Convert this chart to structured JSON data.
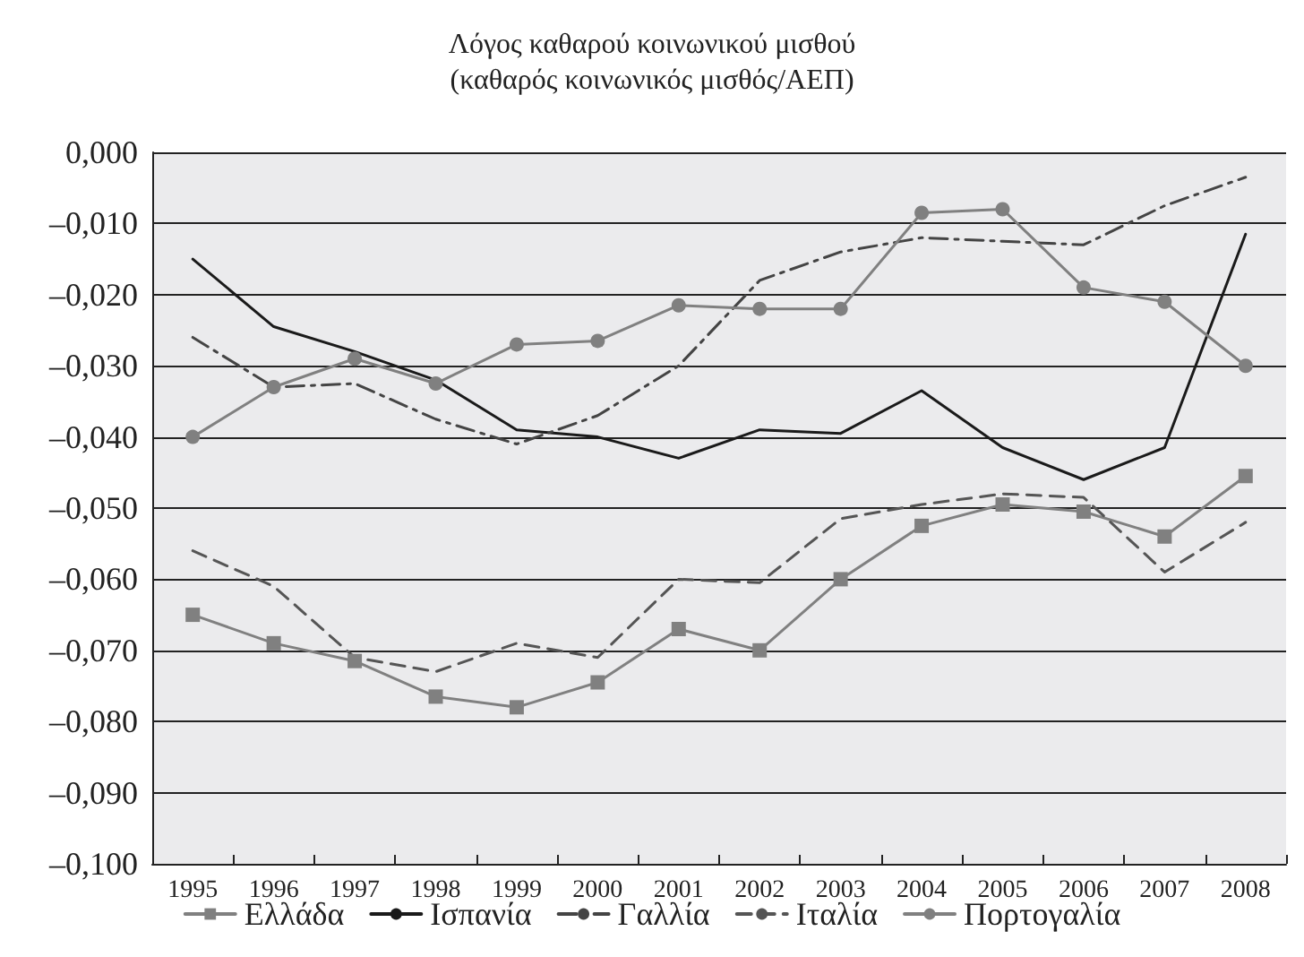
{
  "chart_data": {
    "type": "line",
    "title": "Λόγος καθαρού κοινωνικού μισθού",
    "subtitle": "(καθαρός κοινωνικός μισθός/ΑΕΠ)",
    "categories": [
      "1995",
      "1996",
      "1997",
      "1998",
      "1999",
      "2000",
      "2001",
      "2002",
      "2003",
      "2004",
      "2005",
      "2006",
      "2007",
      "2008"
    ],
    "series": [
      {
        "name": "Ελλάδα",
        "color": "#808080",
        "marker": "square",
        "line_style": "solid",
        "values": [
          -0.065,
          -0.069,
          -0.0715,
          -0.0765,
          -0.078,
          -0.0745,
          -0.067,
          -0.07,
          -0.06,
          -0.0525,
          -0.0495,
          -0.0505,
          -0.054,
          -0.0455
        ]
      },
      {
        "name": "Ισπανία",
        "color": "#1a1a1a",
        "marker": "none",
        "line_style": "solid",
        "values": [
          -0.015,
          -0.0245,
          -0.028,
          -0.032,
          -0.039,
          -0.04,
          -0.043,
          -0.039,
          -0.0395,
          -0.0335,
          -0.0415,
          -0.046,
          -0.0415,
          -0.0115
        ]
      },
      {
        "name": "Γαλλία",
        "color": "#444444",
        "marker": "none",
        "line_style": "dashed",
        "values": [
          -0.026,
          -0.033,
          -0.0325,
          -0.0375,
          -0.041,
          -0.037,
          -0.03,
          -0.018,
          -0.014,
          -0.012,
          -0.0125,
          -0.013,
          -0.0075,
          -0.0035
        ]
      },
      {
        "name": "Ιταλία",
        "color": "#555555",
        "marker": "none",
        "line_style": "dashed",
        "values": [
          -0.056,
          -0.061,
          -0.071,
          -0.073,
          -0.069,
          -0.071,
          -0.06,
          -0.0605,
          -0.0515,
          -0.0495,
          -0.048,
          -0.0485,
          -0.059,
          -0.052
        ]
      },
      {
        "name": "Πορτογαλία",
        "color": "#808080",
        "marker": "circle",
        "line_style": "solid",
        "values": [
          -0.04,
          -0.033,
          -0.029,
          -0.0325,
          -0.027,
          -0.0265,
          -0.0215,
          -0.022,
          -0.022,
          -0.0085,
          -0.008,
          -0.019,
          -0.021,
          -0.03
        ]
      }
    ],
    "ylim": [
      -0.1,
      0
    ],
    "yticks": [
      {
        "value": 0,
        "label": "0,000"
      },
      {
        "value": -0.01,
        "label": "–0,010"
      },
      {
        "value": -0.02,
        "label": "–0,020"
      },
      {
        "value": -0.03,
        "label": "–0,030"
      },
      {
        "value": -0.04,
        "label": "–0,040"
      },
      {
        "value": -0.05,
        "label": "–0,050"
      },
      {
        "value": -0.06,
        "label": "–0,060"
      },
      {
        "value": -0.07,
        "label": "–0,070"
      },
      {
        "value": -0.08,
        "label": "–0,080"
      },
      {
        "value": -0.09,
        "label": "–0,090"
      },
      {
        "value": -0.1,
        "label": "–0,100"
      }
    ],
    "grid": "y",
    "legend": "bottom"
  }
}
